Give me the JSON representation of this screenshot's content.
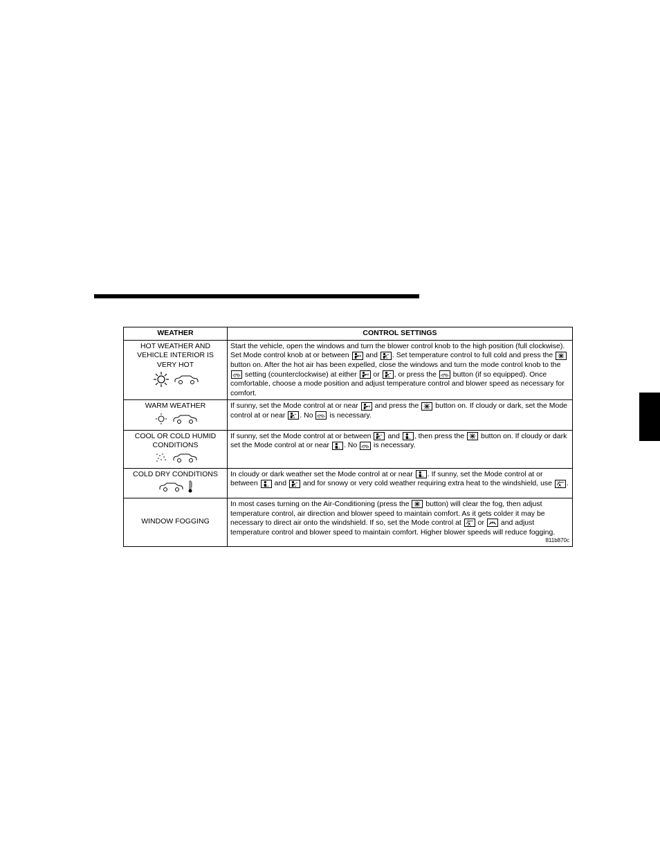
{
  "table": {
    "header": {
      "weather": "WEATHER",
      "settings": "CONTROL SETTINGS"
    },
    "rows": [
      {
        "weather_label": "HOT WEATHER AND VEHICLE INTERIOR IS VERY HOT",
        "icons": [
          "sun-hot",
          "car"
        ],
        "settings_parts": [
          "Start the vehicle, open the windows and turn the blower control knob to the high position (full clockwise). Set Mode control knob at or between ",
          {
            "icon": "face-vent"
          },
          " and ",
          {
            "icon": "bi-level"
          },
          ". Set temperature control to full cold and press the ",
          {
            "icon": "snowflake"
          },
          " button on. After the hot air has been expelled, close the windows and turn the mode control knob to the ",
          {
            "icon": "recirc"
          },
          " setting (counterclockwise) at either ",
          {
            "icon": "face-vent"
          },
          " or ",
          {
            "icon": "bi-level"
          },
          ", or press the ",
          {
            "icon": "recirc"
          },
          " button (if so equipped). Once comfortable, choose a mode position and adjust temperature control and blower speed as necessary for comfort."
        ]
      },
      {
        "weather_label": "WARM WEATHER",
        "icons": [
          "sun",
          "car"
        ],
        "settings_parts": [
          "If sunny, set the Mode control at or near ",
          {
            "icon": "face-vent"
          },
          " and press the ",
          {
            "icon": "snowflake"
          },
          " button on. If cloudy or dark, set the Mode control at or near ",
          {
            "icon": "bi-level"
          },
          ". No ",
          {
            "icon": "recirc"
          },
          " is necessary."
        ]
      },
      {
        "weather_label": "COOL OR COLD HUMID CONDITIONS",
        "icons": [
          "rain",
          "car"
        ],
        "settings_parts": [
          "If sunny, set the Mode control at or between ",
          {
            "icon": "bi-level"
          },
          " and ",
          {
            "icon": "floor"
          },
          ", then press the ",
          {
            "icon": "snowflake"
          },
          " button on. If cloudy or dark set the Mode control at or near ",
          {
            "icon": "floor"
          },
          ". No ",
          {
            "icon": "recirc"
          },
          " is necessary."
        ]
      },
      {
        "weather_label": "COLD DRY CONDITIONS",
        "icons": [
          "car",
          "thermometer"
        ],
        "settings_parts": [
          "In cloudy or dark weather set the Mode control at or near ",
          {
            "icon": "floor"
          },
          ". If sunny, set the Mode control at or between ",
          {
            "icon": "floor"
          },
          " and ",
          {
            "icon": "bi-level"
          },
          " and for snowy or very cold weather requiring extra heat to the windshield, use ",
          {
            "icon": "mix"
          },
          "."
        ]
      },
      {
        "weather_label": "WINDOW FOGGING",
        "icons": [],
        "settings_parts": [
          "In most cases turning on the Air-Conditioning (press the ",
          {
            "icon": "snowflake"
          },
          " button) will clear the fog, then adjust temperature control, air direction and blower speed to maintain comfort. As it gets colder it may be necessary to direct air onto the windshield. If so, set the Mode control at ",
          {
            "icon": "mix"
          },
          " or ",
          {
            "icon": "defrost"
          },
          " and adjust temperature control and blower speed to maintain comfort. Higher blower speeds will reduce fogging."
        ]
      }
    ],
    "footer_code": "811b870c"
  },
  "colors": {
    "black": "#000000",
    "white": "#ffffff"
  }
}
